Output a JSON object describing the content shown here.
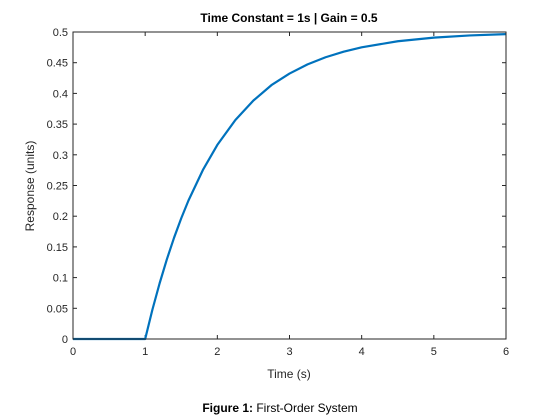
{
  "chart_data": {
    "type": "line",
    "title": "Time Constant = 1s | Gain = 0.5",
    "xlabel": "Time (s)",
    "ylabel": "Response (units)",
    "xlim": [
      0,
      6
    ],
    "ylim": [
      0,
      0.5
    ],
    "xticks": [
      "0",
      "1",
      "2",
      "3",
      "4",
      "5",
      "6"
    ],
    "yticks": [
      "0",
      "0.05",
      "0.1",
      "0.15",
      "0.2",
      "0.25",
      "0.3",
      "0.35",
      "0.4",
      "0.45",
      "0.5"
    ],
    "grid": false,
    "line_color": "#0072BD",
    "series": [
      {
        "x": [
          0,
          1,
          1.1,
          1.2,
          1.3,
          1.4,
          1.5,
          1.6,
          1.8,
          2,
          2.25,
          2.5,
          2.75,
          3,
          3.25,
          3.5,
          3.75,
          4,
          4.5,
          5,
          5.5,
          6
        ],
        "y": [
          0,
          0,
          0.0476,
          0.0906,
          0.1296,
          0.1648,
          0.1967,
          0.2256,
          0.2753,
          0.3161,
          0.3567,
          0.3884,
          0.4135,
          0.4323,
          0.4473,
          0.4589,
          0.4679,
          0.4751,
          0.4849,
          0.4908,
          0.4944,
          0.4966
        ]
      }
    ]
  },
  "caption": {
    "label": "Figure 1:",
    "text": " First-Order System"
  }
}
